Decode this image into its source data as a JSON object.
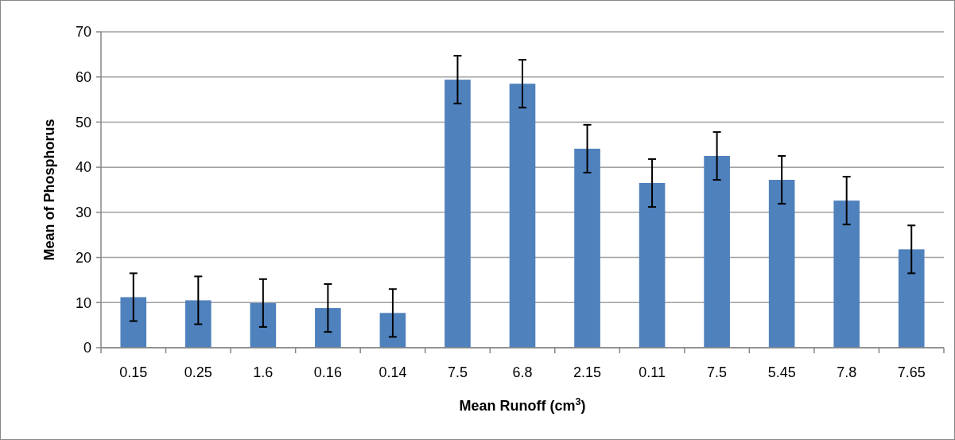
{
  "chart_data": {
    "type": "bar",
    "xlabel": "Mean Runoff (cm$^{3}$)",
    "ylabel": "Mean of Phosphorus",
    "categories": [
      "0.15",
      "0.25",
      "1.6",
      "0.16",
      "0.14",
      "7.5",
      "6.8",
      "2.15",
      "0.11",
      "7.5",
      "5.45",
      "7.8",
      "7.65"
    ],
    "values": [
      11.2,
      10.5,
      9.9,
      8.8,
      7.7,
      59.4,
      58.5,
      44.1,
      36.5,
      42.5,
      37.2,
      32.6,
      21.8
    ],
    "errors": [
      5.3,
      5.3,
      5.3,
      5.3,
      5.3,
      5.3,
      5.3,
      5.3,
      5.3,
      5.3,
      5.3,
      5.3,
      5.3
    ],
    "color": "#4f81bd",
    "ylim": [
      0,
      70
    ],
    "yticks": [
      0,
      10,
      20,
      30,
      40,
      50,
      60,
      70
    ],
    "grid": "y"
  }
}
